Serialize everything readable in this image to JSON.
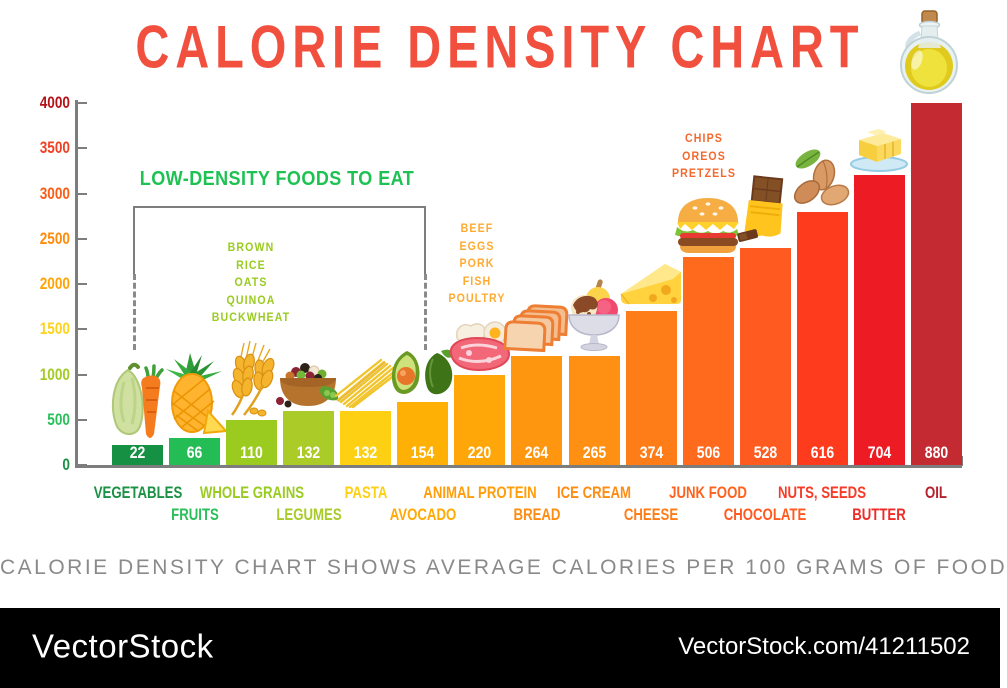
{
  "title": "CALORIE DENSITY CHART",
  "title_color": "#f2503f",
  "subtitle": "CALORIE DENSITY CHART SHOWS AVERAGE CALORIES PER 100 GRAMS OF FOOD",
  "watermark": {
    "brand": "VectorStock",
    "link": "VectorStock.com/41211502"
  },
  "title_icon": "oil-bottle-icon",
  "chart_data": {
    "type": "bar",
    "title": "CALORIE DENSITY CHART",
    "xlabel": "",
    "ylabel": "",
    "ylim": [
      0,
      4000
    ],
    "grid": false,
    "legend": null,
    "unit_note": "values are average calories per 100 grams of food",
    "bar_scale_note": "bars are drawn on the 0-4000 axis at value x 4.54 (calories per pound)",
    "categories": [
      "VEGETABLES",
      "FRUITS",
      "WHOLE GRAINS",
      "LEGUMES",
      "PASTA",
      "AVOCADO",
      "ANIMAL PROTEIN",
      "BREAD",
      "ICE CREAM",
      "CHEESE",
      "JUNK FOOD",
      "CHOCOLATE",
      "NUTS, SEEDS",
      "BUTTER",
      "OIL"
    ],
    "values": [
      22,
      66,
      110,
      132,
      132,
      154,
      220,
      264,
      265,
      374,
      506,
      528,
      616,
      704,
      880
    ],
    "yticks": [
      {
        "value": "0",
        "color": "#1a9143"
      },
      {
        "value": "500",
        "color": "#2abf5a"
      },
      {
        "value": "1000",
        "color": "#a3cb25"
      },
      {
        "value": "1500",
        "color": "#fed31a"
      },
      {
        "value": "2000",
        "color": "#ffa407"
      },
      {
        "value": "2500",
        "color": "#fe8c0c"
      },
      {
        "value": "3000",
        "color": "#fa5c16"
      },
      {
        "value": "3500",
        "color": "#f04124"
      },
      {
        "value": "4000",
        "color": "#b31217"
      }
    ],
    "bars": [
      {
        "label": "VEGETABLES",
        "value": "22",
        "color": "#169043",
        "label_color": "#1a9143",
        "icon": "vegetables-icon"
      },
      {
        "label": "FRUITS",
        "value": "66",
        "color": "#24bc55",
        "label_color": "#2abf5a",
        "icon": "pineapple-icon"
      },
      {
        "label": "WHOLE GRAINS",
        "value": "110",
        "color": "#9ccb20",
        "label_color": "#9acb20",
        "icon": "wheat-icon"
      },
      {
        "label": "LEGUMES",
        "value": "132",
        "color": "#abcb28",
        "label_color": "#a8cb28",
        "icon": "legumes-bowl-icon"
      },
      {
        "label": "PASTA",
        "value": "132",
        "color": "#fdd014",
        "label_color": "#fdd014",
        "icon": "spaghetti-icon"
      },
      {
        "label": "AVOCADO",
        "value": "154",
        "color": "#ffb005",
        "label_color": "#ffaa05",
        "icon": "avocado-icon"
      },
      {
        "label": "ANIMAL PROTEIN",
        "value": "220",
        "color": "#ffa608",
        "label_color": "#ff9d0a",
        "icon": "meat-eggs-icon"
      },
      {
        "label": "BREAD",
        "value": "264",
        "color": "#ff9610",
        "label_color": "#ff8c13",
        "icon": "bread-icon"
      },
      {
        "label": "ICE CREAM",
        "value": "265",
        "color": "#ff9013",
        "label_color": "#ff8c13",
        "icon": "ice-cream-icon"
      },
      {
        "label": "CHEESE",
        "value": "374",
        "color": "#ff7d18",
        "label_color": "#ff7d17",
        "icon": "cheese-icon"
      },
      {
        "label": "JUNK FOOD",
        "value": "506",
        "color": "#ff6a1d",
        "label_color": "#ff611e",
        "icon": "burger-icon"
      },
      {
        "label": "CHOCOLATE",
        "value": "528",
        "color": "#ff5a20",
        "label_color": "#ff5a20",
        "icon": "chocolate-icon"
      },
      {
        "label": "NUTS, SEEDS",
        "value": "616",
        "color": "#fe3b1d",
        "label_color": "#f63b26",
        "icon": "almonds-icon"
      },
      {
        "label": "BUTTER",
        "value": "704",
        "color": "#ed1c24",
        "label_color": "#ef2b28",
        "icon": "butter-icon"
      },
      {
        "label": "OIL",
        "value": "880",
        "color": "#c32a31",
        "label_color": "#b5212d",
        "icon": null
      }
    ],
    "annotations": [
      {
        "id": "low-density",
        "text": "LOW-DENSITY FOODS TO EAT",
        "color": "#1dc253",
        "bracket": true
      },
      {
        "id": "grains-list",
        "lines": [
          "BROWN",
          "RICE",
          "OATS",
          "QUINOA",
          "BUCKWHEAT"
        ],
        "color": "#9acb20"
      },
      {
        "id": "protein-list",
        "lines": [
          "BEEF",
          "EGGS",
          "PORK",
          "FISH",
          "POULTRY"
        ],
        "color": "#ffaa30"
      },
      {
        "id": "junk-list",
        "lines": [
          "CHIPS",
          "OREOS",
          "PRETZELS"
        ],
        "color": "#f4682e"
      }
    ]
  }
}
